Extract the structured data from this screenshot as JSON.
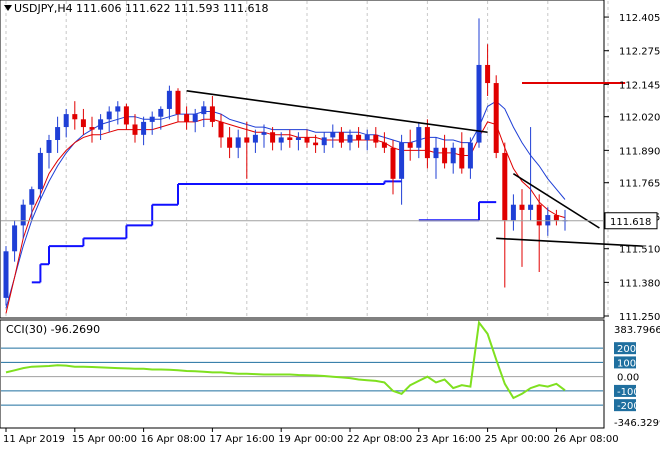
{
  "header": {
    "symbol": "USDJPY,H4",
    "ohlc": "111.606 111.622 111.593 111.618"
  },
  "indicator": {
    "label": "CCI(30) -96.2690",
    "max_label": "383.7966",
    "min_label": "-346.3299",
    "levels": [
      {
        "text": "200",
        "value": 200,
        "boxed": true
      },
      {
        "text": "100",
        "value": 100,
        "boxed": true
      },
      {
        "text": "0.00",
        "value": 0,
        "boxed": false
      },
      {
        "text": "-100",
        "value": -100,
        "boxed": true
      },
      {
        "text": "-200",
        "value": -200,
        "boxed": true
      }
    ]
  },
  "price_axis": {
    "ticks": [
      "112.405",
      "112.275",
      "112.145",
      "112.020",
      "111.890",
      "111.765",
      "111.635",
      "111.510",
      "111.380",
      "111.250"
    ],
    "current_price": "111.618"
  },
  "time_axis": {
    "labels": [
      "11 Apr 2019",
      "15 Apr 00:00",
      "16 Apr 08:00",
      "17 Apr 16:00",
      "19 Apr 00:00",
      "22 Apr 08:00",
      "23 Apr 16:00",
      "25 Apr 00:00",
      "26 Apr 08:00"
    ]
  },
  "colors": {
    "bull": "#1f3fd6",
    "bear": "#e00000",
    "ma_fast": "#e00000",
    "ma_slow": "#1f3fd6",
    "support": "#1010ff",
    "cci": "#7fe01f",
    "level_box": "#1f6f9f",
    "grid": "#c8c8c8",
    "trend": "#000000"
  },
  "chart_data": {
    "type": "candlestick",
    "ylim": [
      111.25,
      112.44
    ],
    "candles": [
      [
        111.32,
        111.52,
        111.29,
        111.5
      ],
      [
        111.5,
        111.62,
        111.46,
        111.6
      ],
      [
        111.6,
        111.7,
        111.55,
        111.68
      ],
      [
        111.68,
        111.75,
        111.62,
        111.74
      ],
      [
        111.74,
        111.9,
        111.7,
        111.88
      ],
      [
        111.88,
        111.95,
        111.82,
        111.93
      ],
      [
        111.93,
        112.02,
        111.88,
        111.98
      ],
      [
        111.98,
        112.05,
        111.94,
        112.03
      ],
      [
        112.03,
        112.08,
        111.97,
        112.01
      ],
      [
        112.01,
        112.05,
        111.95,
        111.98
      ],
      [
        111.98,
        112.02,
        111.92,
        111.97
      ],
      [
        111.97,
        112.03,
        111.93,
        112.01
      ],
      [
        112.01,
        112.06,
        111.96,
        112.04
      ],
      [
        112.04,
        112.08,
        111.99,
        112.06
      ],
      [
        112.06,
        112.07,
        111.97,
        111.99
      ],
      [
        111.99,
        112.03,
        111.92,
        111.95
      ],
      [
        111.95,
        112.02,
        111.91,
        112.0
      ],
      [
        112.0,
        112.04,
        111.95,
        112.02
      ],
      [
        112.02,
        112.06,
        111.97,
        112.05
      ],
      [
        112.05,
        112.14,
        112.01,
        112.12
      ],
      [
        112.12,
        112.13,
        112.0,
        112.03
      ],
      [
        112.03,
        112.06,
        111.97,
        112.0
      ],
      [
        112.0,
        112.05,
        111.96,
        112.03
      ],
      [
        112.03,
        112.08,
        111.98,
        112.06
      ],
      [
        112.06,
        112.1,
        111.98,
        112.0
      ],
      [
        112.0,
        112.03,
        111.9,
        111.94
      ],
      [
        111.94,
        111.98,
        111.86,
        111.9
      ],
      [
        111.9,
        111.97,
        111.86,
        111.94
      ],
      [
        111.94,
        112.0,
        111.78,
        111.92
      ],
      [
        111.92,
        111.97,
        111.88,
        111.95
      ],
      [
        111.95,
        111.99,
        111.9,
        111.96
      ],
      [
        111.96,
        111.98,
        111.89,
        111.92
      ],
      [
        111.92,
        111.96,
        111.89,
        111.94
      ],
      [
        111.94,
        111.97,
        111.9,
        111.93
      ],
      [
        111.93,
        111.96,
        111.89,
        111.94
      ],
      [
        111.94,
        111.97,
        111.9,
        111.92
      ],
      [
        111.92,
        111.95,
        111.88,
        111.91
      ],
      [
        111.91,
        111.96,
        111.88,
        111.94
      ],
      [
        111.94,
        111.99,
        111.9,
        111.96
      ],
      [
        111.96,
        111.98,
        111.9,
        111.92
      ],
      [
        111.92,
        111.97,
        111.89,
        111.95
      ],
      [
        111.95,
        111.98,
        111.9,
        111.93
      ],
      [
        111.93,
        111.97,
        111.89,
        111.95
      ],
      [
        111.95,
        111.98,
        111.9,
        111.92
      ],
      [
        111.92,
        111.96,
        111.88,
        111.9
      ],
      [
        111.9,
        111.93,
        111.72,
        111.78
      ],
      [
        111.78,
        111.95,
        111.68,
        111.92
      ],
      [
        111.92,
        111.97,
        111.85,
        111.9
      ],
      [
        111.9,
        112.0,
        111.86,
        111.98
      ],
      [
        111.98,
        112.01,
        111.82,
        111.86
      ],
      [
        111.86,
        111.94,
        111.78,
        111.9
      ],
      [
        111.9,
        111.95,
        111.82,
        111.84
      ],
      [
        111.84,
        111.92,
        111.8,
        111.9
      ],
      [
        111.9,
        111.96,
        111.8,
        111.82
      ],
      [
        111.82,
        111.94,
        111.78,
        111.92
      ],
      [
        111.92,
        112.4,
        111.9,
        112.22
      ],
      [
        112.22,
        112.3,
        112.1,
        112.15
      ],
      [
        112.15,
        112.18,
        111.86,
        111.88
      ],
      [
        111.88,
        111.92,
        111.36,
        111.62
      ],
      [
        111.62,
        111.72,
        111.58,
        111.68
      ],
      [
        111.68,
        111.74,
        111.44,
        111.66
      ],
      [
        111.66,
        111.98,
        111.62,
        111.68
      ],
      [
        111.68,
        111.72,
        111.42,
        111.6
      ],
      [
        111.6,
        111.67,
        111.56,
        111.64
      ],
      [
        111.64,
        111.66,
        111.6,
        111.62
      ],
      [
        111.62,
        111.66,
        111.58,
        111.62
      ]
    ],
    "ma_fast": [
      111.26,
      111.4,
      111.55,
      111.65,
      111.72,
      111.8,
      111.85,
      111.89,
      111.92,
      111.94,
      111.95,
      111.95,
      111.96,
      111.97,
      111.97,
      111.97,
      111.97,
      111.97,
      111.98,
      111.99,
      112.0,
      112.0,
      112.0,
      112.01,
      112.01,
      112.0,
      111.99,
      111.98,
      111.97,
      111.96,
      111.96,
      111.95,
      111.95,
      111.95,
      111.94,
      111.94,
      111.94,
      111.93,
      111.93,
      111.93,
      111.93,
      111.93,
      111.93,
      111.93,
      111.92,
      111.9,
      111.89,
      111.89,
      111.89,
      111.89,
      111.88,
      111.88,
      111.88,
      111.87,
      111.87,
      111.94,
      112.0,
      111.99,
      111.9,
      111.82,
      111.77,
      111.74,
      111.69,
      111.66,
      111.64,
      111.63
    ],
    "ma_slow": [
      111.28,
      111.4,
      111.52,
      111.62,
      111.7,
      111.77,
      111.83,
      111.88,
      111.92,
      111.95,
      111.97,
      111.99,
      112.0,
      112.01,
      112.02,
      112.02,
      112.01,
      112.01,
      112.01,
      112.02,
      112.03,
      112.03,
      112.03,
      112.04,
      112.04,
      112.03,
      112.01,
      112.0,
      111.99,
      111.98,
      111.98,
      111.97,
      111.97,
      111.97,
      111.97,
      111.97,
      111.96,
      111.96,
      111.96,
      111.96,
      111.96,
      111.96,
      111.95,
      111.95,
      111.94,
      111.93,
      111.92,
      111.92,
      111.93,
      111.94,
      111.94,
      111.93,
      111.93,
      111.92,
      111.92,
      111.98,
      112.06,
      112.08,
      112.05,
      111.98,
      111.92,
      111.87,
      111.83,
      111.78,
      111.74,
      111.7
    ],
    "support_steps": [
      {
        "from": 3,
        "to": 4,
        "y": 111.38
      },
      {
        "from": 4,
        "to": 5,
        "y": 111.45
      },
      {
        "from": 5,
        "to": 9,
        "y": 111.52
      },
      {
        "from": 9,
        "to": 14,
        "y": 111.55
      },
      {
        "from": 14,
        "to": 17,
        "y": 111.6
      },
      {
        "from": 17,
        "to": 20,
        "y": 111.68
      },
      {
        "from": 20,
        "to": 44,
        "y": 111.76
      },
      {
        "from": 44,
        "to": 46,
        "y": 111.77
      },
      {
        "from": 48,
        "to": 55,
        "y": 111.62
      },
      {
        "from": 55,
        "to": 57,
        "y": 111.69
      }
    ],
    "resistance_level": {
      "from": 60,
      "to": 72,
      "y": 112.15
    },
    "trendlines": [
      {
        "x1": 21,
        "y1": 112.12,
        "x2": 56,
        "y2": 111.96
      },
      {
        "x1": 59,
        "y1": 111.8,
        "x2": 69,
        "y2": 111.59
      },
      {
        "x1": 57,
        "y1": 111.55,
        "x2": 74,
        "y2": 111.52
      }
    ],
    "cci": [
      30,
      45,
      60,
      70,
      72,
      75,
      80,
      78,
      70,
      70,
      68,
      65,
      62,
      60,
      58,
      55,
      55,
      50,
      50,
      48,
      45,
      40,
      38,
      35,
      30,
      30,
      25,
      20,
      20,
      18,
      15,
      15,
      15,
      15,
      12,
      10,
      8,
      5,
      0,
      -5,
      -10,
      -20,
      -25,
      -30,
      -40,
      -100,
      -120,
      -60,
      -30,
      0,
      -40,
      -20,
      -80,
      -60,
      -70,
      380,
      300,
      120,
      -50,
      -150,
      -120,
      -80,
      -60,
      -70,
      -50,
      -96
    ]
  }
}
